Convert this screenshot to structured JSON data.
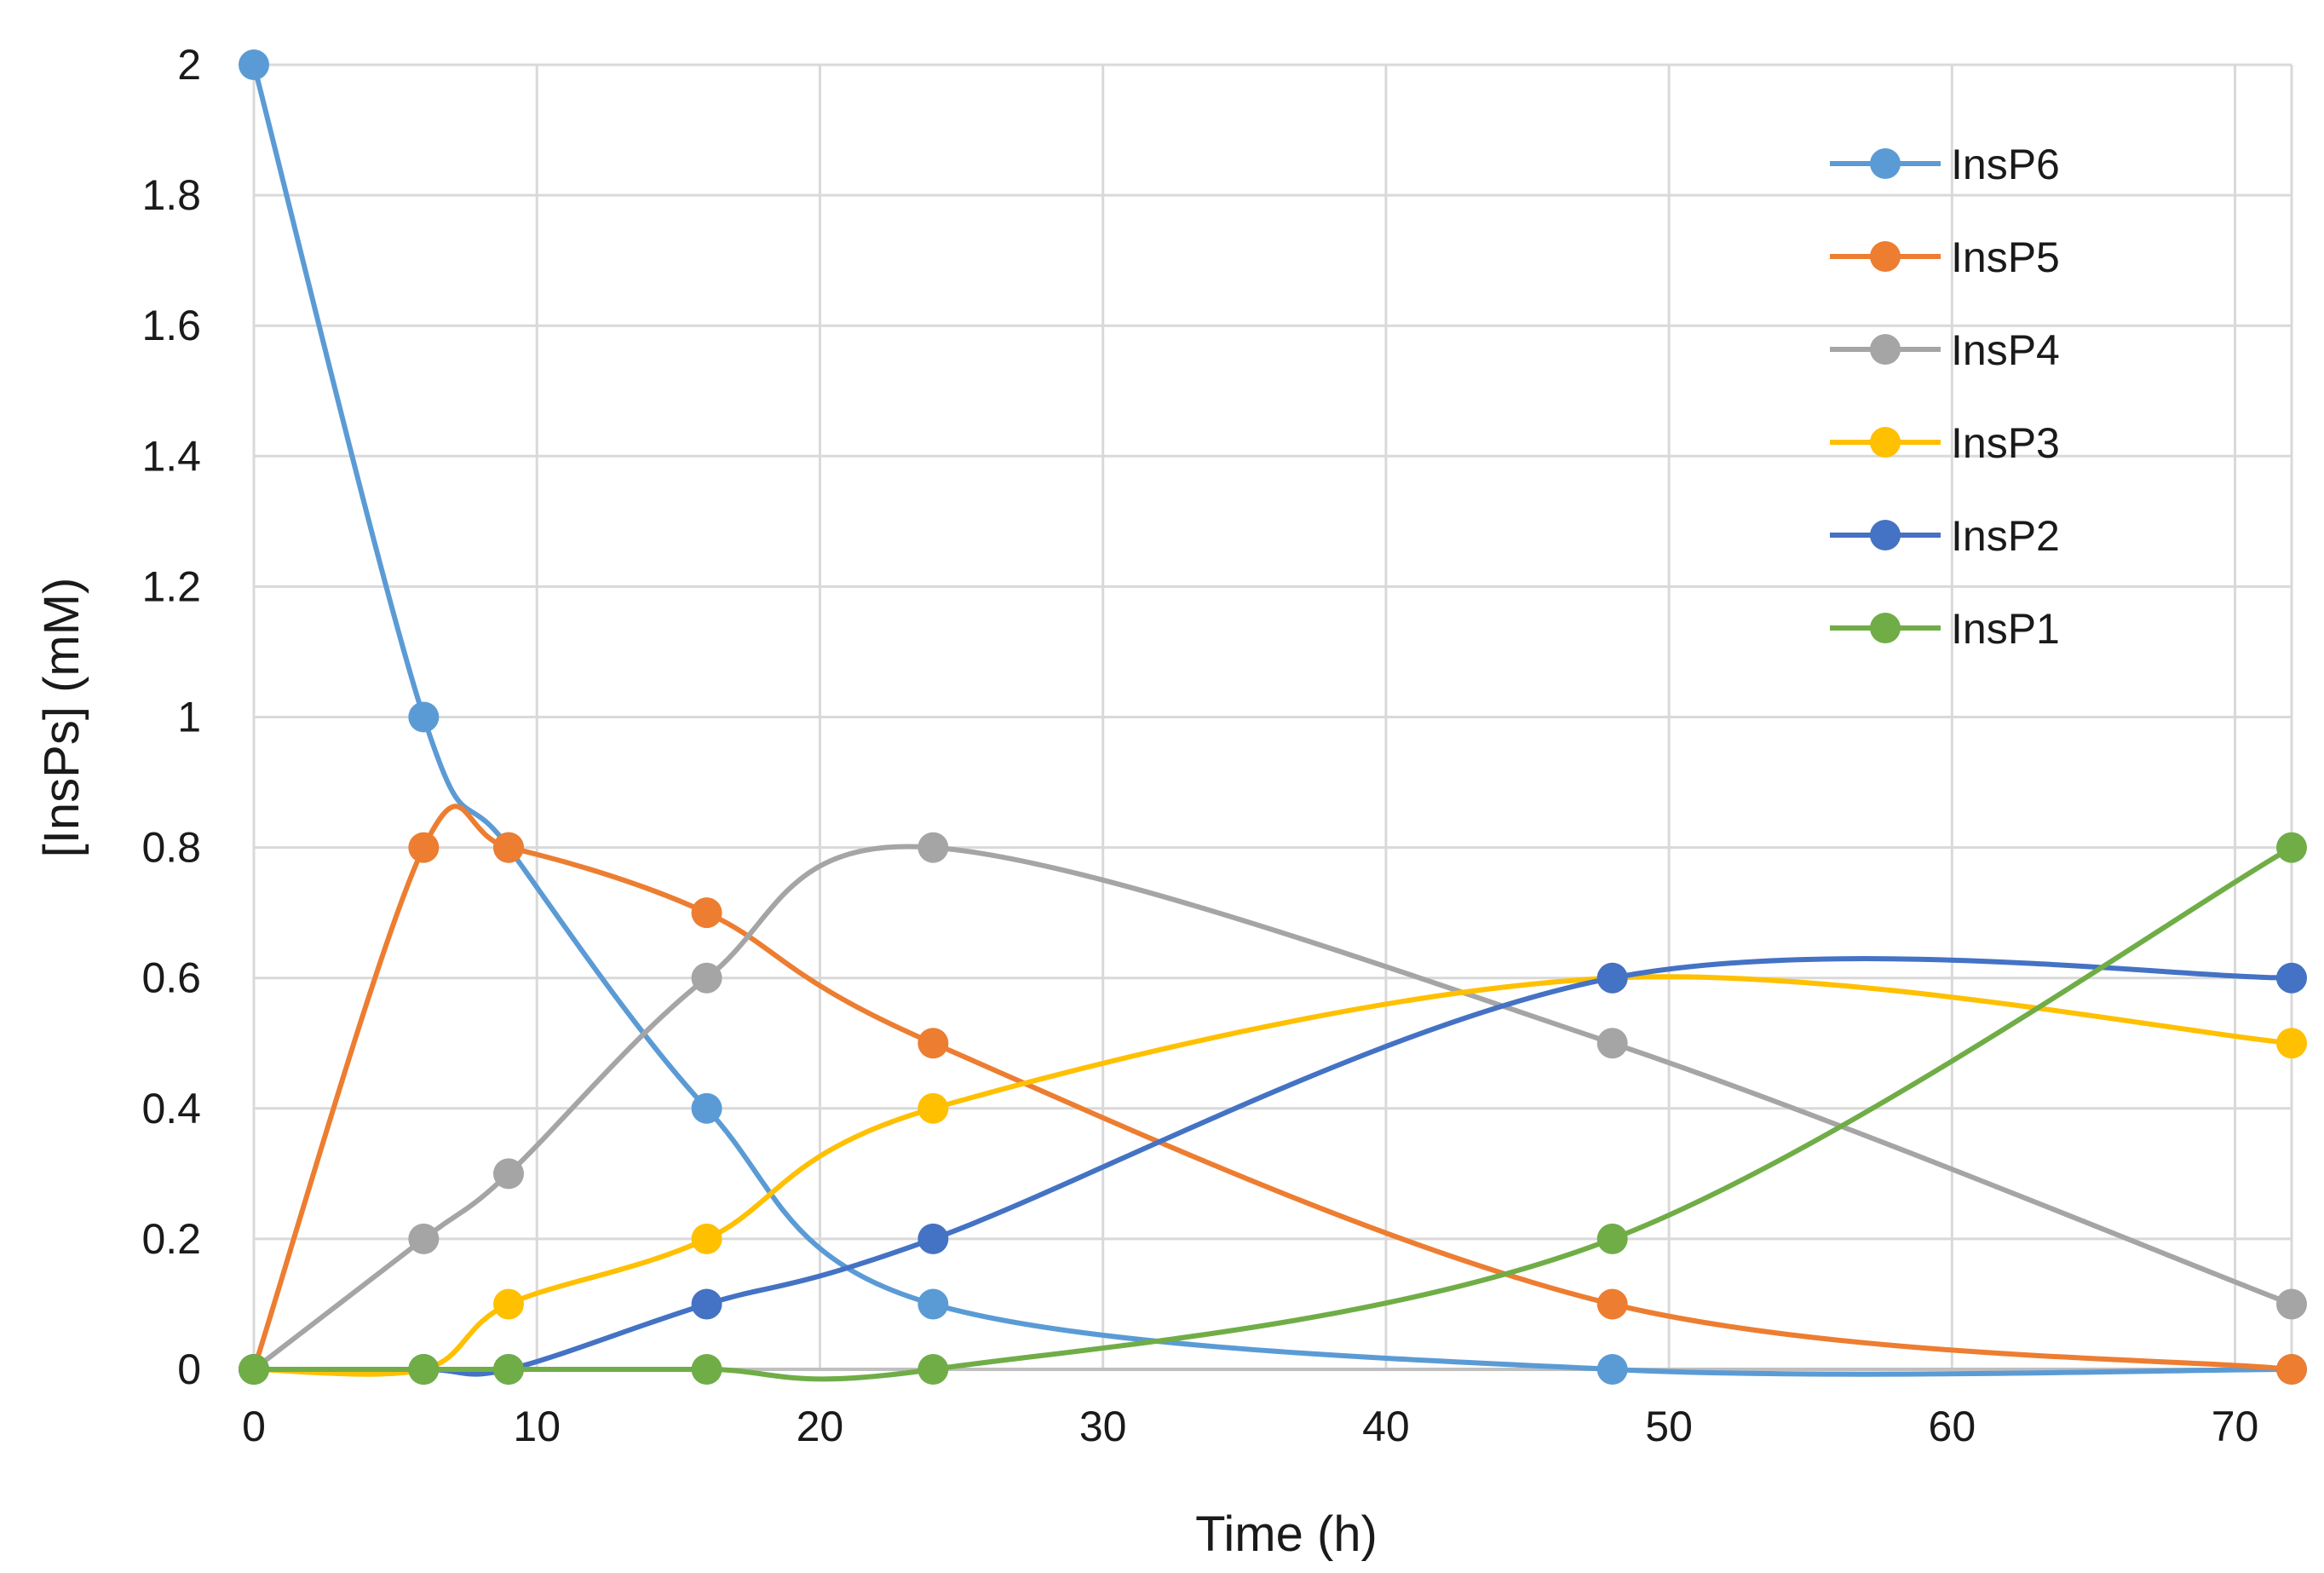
{
  "chart_data": {
    "type": "line",
    "title": "",
    "xlabel": "Time (h)",
    "ylabel": "[InsPs] (mM)",
    "xlim": [
      0,
      72
    ],
    "ylim": [
      0,
      2
    ],
    "grid": true,
    "legend_position": "top-right",
    "x_ticks": [
      0,
      10,
      20,
      30,
      40,
      50,
      60,
      70
    ],
    "y_ticks": [
      0,
      0.2,
      0.4,
      0.6,
      0.8,
      1,
      1.2,
      1.4,
      1.6,
      1.8,
      2
    ],
    "x_tick_labels": [
      "0",
      "10",
      "20",
      "30",
      "40",
      "50",
      "60",
      "70"
    ],
    "y_tick_labels": [
      "0",
      "0.2",
      "0.4",
      "0.6",
      "0.8",
      "1",
      "1.2",
      "1.4",
      "1.6",
      "1.8",
      "2"
    ],
    "x": [
      0,
      6,
      9,
      16,
      24,
      48,
      72
    ],
    "series": [
      {
        "name": "InsP6",
        "color": "#5B9BD5",
        "values": [
          2,
          1,
          0.8,
          0.4,
          0.1,
          0,
          0
        ]
      },
      {
        "name": "InsP5",
        "color": "#ED7D31",
        "values": [
          0,
          0.8,
          0.8,
          0.7,
          0.5,
          0.1,
          0
        ]
      },
      {
        "name": "InsP4",
        "color": "#A5A5A5",
        "values": [
          0,
          0.2,
          0.3,
          0.6,
          0.8,
          0.5,
          0.1
        ]
      },
      {
        "name": "InsP3",
        "color": "#FFC000",
        "values": [
          0,
          0,
          0.1,
          0.2,
          0.4,
          0.6,
          0.5
        ]
      },
      {
        "name": "InsP2",
        "color": "#4472C4",
        "values": [
          0,
          0,
          0,
          0.1,
          0.2,
          0.6,
          0.6
        ]
      },
      {
        "name": "InsP1",
        "color": "#70AD47",
        "values": [
          0,
          0,
          0,
          0,
          0,
          0.2,
          0.8
        ]
      }
    ]
  }
}
